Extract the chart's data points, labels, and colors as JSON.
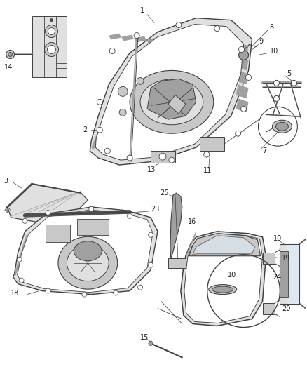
{
  "bg_color": "#ffffff",
  "fig_width": 4.38,
  "fig_height": 5.33,
  "dpi": 100,
  "lc": "#404040",
  "lc2": "#606060",
  "fs": 7.0,
  "fc": "#222222",
  "gray1": "#c8c8c8",
  "gray2": "#a0a0a0",
  "gray3": "#e0e0e0",
  "gray_dark": "#505050"
}
